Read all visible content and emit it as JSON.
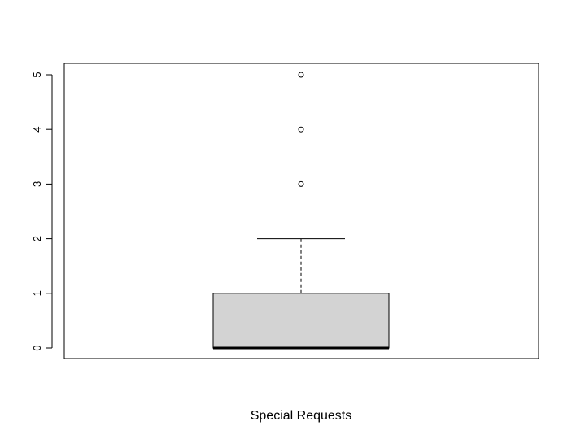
{
  "chart_data": {
    "type": "boxplot",
    "title": "",
    "xlabel": "Special Requests",
    "ylabel": "",
    "ylim": [
      -0.2,
      5.2
    ],
    "yticks": [
      0,
      1,
      2,
      3,
      4,
      5
    ],
    "box": {
      "min": 0,
      "q1": 0,
      "median": 0,
      "q3": 1,
      "max": 2,
      "outliers": [
        3,
        4,
        5
      ]
    },
    "colors": {
      "box_fill": "#d3d3d3",
      "stroke": "#000000"
    }
  }
}
